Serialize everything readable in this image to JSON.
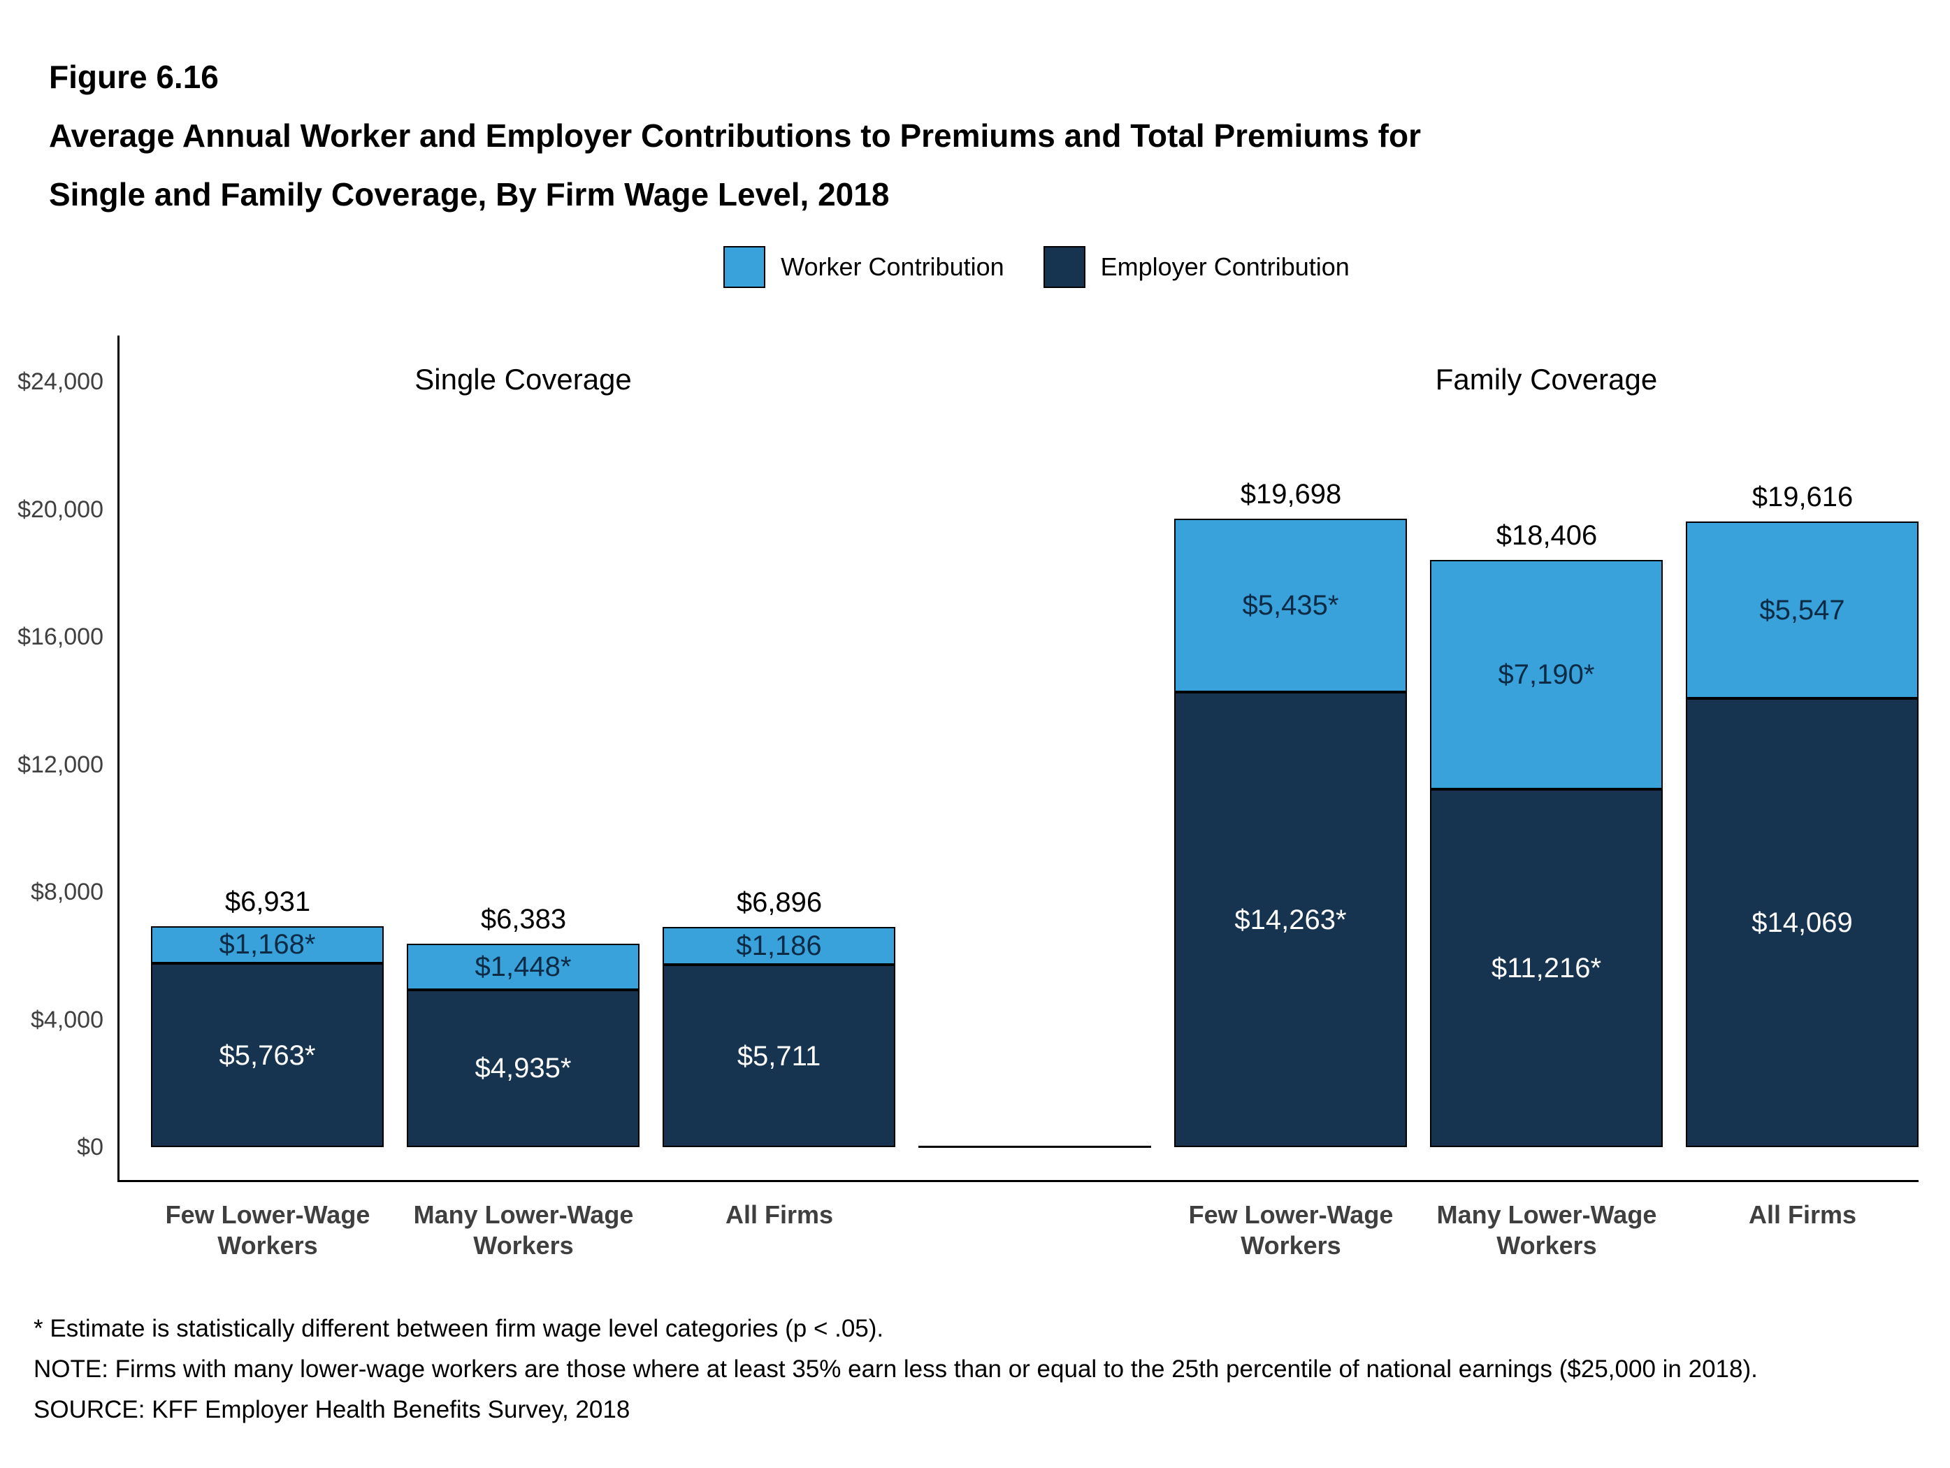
{
  "figure": {
    "label": "Figure 6.16",
    "title_line1": "Average Annual Worker and Employer Contributions to Premiums and Total Premiums for",
    "title_line2": "Single and Family Coverage, By Firm Wage Level, 2018"
  },
  "legend": [
    {
      "label": "Worker Contribution",
      "color": "#39A2DB"
    },
    {
      "label": "Employer Contribution",
      "color": "#16344F"
    }
  ],
  "chart_data": {
    "type": "bar",
    "stacked": true,
    "title": "Average Annual Worker and Employer Contributions to Premiums and Total Premiums for Single and Family Coverage, By Firm Wage Level, 2018",
    "xlabel": "",
    "ylabel": "",
    "ylim": [
      0,
      24000
    ],
    "grid": false,
    "legend_position": "top",
    "y_ticks": [
      {
        "value": 0,
        "label": "$0"
      },
      {
        "value": 4000,
        "label": "$4,000"
      },
      {
        "value": 8000,
        "label": "$8,000"
      },
      {
        "value": 12000,
        "label": "$12,000"
      },
      {
        "value": 16000,
        "label": "$16,000"
      },
      {
        "value": 20000,
        "label": "$20,000"
      },
      {
        "value": 24000,
        "label": "$24,000"
      }
    ],
    "series_names": [
      "Worker Contribution",
      "Employer Contribution"
    ],
    "colors": {
      "worker": "#39A2DB",
      "employer": "#16344F"
    },
    "groups": [
      {
        "title": "Single Coverage",
        "bars": [
          {
            "category": [
              "Few Lower-Wage",
              "Workers"
            ],
            "worker": 1168,
            "employer": 5763,
            "total": 6931,
            "worker_label": "$1,168*",
            "employer_label": "$5,763*",
            "total_label": "$6,931"
          },
          {
            "category": [
              "Many Lower-Wage",
              "Workers"
            ],
            "worker": 1448,
            "employer": 4935,
            "total": 6383,
            "worker_label": "$1,448*",
            "employer_label": "$4,935*",
            "total_label": "$6,383"
          },
          {
            "category": [
              "All Firms"
            ],
            "worker": 1186,
            "employer": 5711,
            "total": 6896,
            "worker_label": "$1,186",
            "employer_label": "$5,711",
            "total_label": "$6,896"
          }
        ]
      },
      {
        "title": "Family Coverage",
        "bars": [
          {
            "category": [
              "Few Lower-Wage",
              "Workers"
            ],
            "worker": 5435,
            "employer": 14263,
            "total": 19698,
            "worker_label": "$5,435*",
            "employer_label": "$14,263*",
            "total_label": "$19,698"
          },
          {
            "category": [
              "Many Lower-Wage",
              "Workers"
            ],
            "worker": 7190,
            "employer": 11216,
            "total": 18406,
            "worker_label": "$7,190*",
            "employer_label": "$11,216*",
            "total_label": "$18,406"
          },
          {
            "category": [
              "All Firms"
            ],
            "worker": 5547,
            "employer": 14069,
            "total": 19616,
            "worker_label": "$5,547",
            "employer_label": "$14,069",
            "total_label": "$19,616"
          }
        ]
      }
    ]
  },
  "footnotes": [
    "* Estimate is statistically different between firm wage level categories (p < .05).",
    "NOTE: Firms with many lower-wage workers are those where at least 35% earn less than or equal to the 25th percentile of national earnings ($25,000 in 2018).",
    "SOURCE: KFF Employer Health Benefits Survey, 2018"
  ]
}
